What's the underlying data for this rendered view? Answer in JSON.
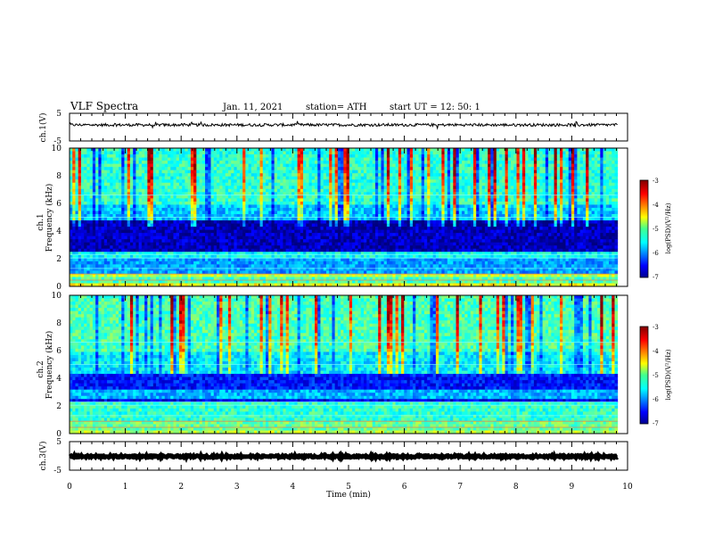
{
  "header": {
    "title": "VLF Spectra",
    "date": "Jan. 11, 2021",
    "station": "station= ATH",
    "start": "start  UT =   12: 50: 1"
  },
  "chart_data": [
    {
      "type": "line",
      "name": "panel-ch1-waveform",
      "ylabel": "ch.1(V)",
      "ylim": [
        -5,
        5
      ],
      "yticks": [
        "5",
        "-5"
      ],
      "xlim": [
        0,
        10
      ],
      "mean_level": 0.8,
      "amplitude": 0.5
    },
    {
      "type": "heatmap",
      "name": "panel-ch1-spectrogram",
      "ylabel": "ch.1\nFrequency  (kHz)",
      "ylabel_lines": [
        "ch.1",
        "Frequency  (kHz)"
      ],
      "ylim": [
        0,
        10
      ],
      "yticks": [
        "0",
        "2",
        "4",
        "6",
        "8",
        "10"
      ],
      "xlim": [
        0,
        10
      ],
      "data_end_min": 9.82,
      "colorbar": {
        "label": "log(PSD)(V²/Hz)",
        "range": [
          -7,
          -3
        ],
        "ticks": [
          "-3",
          "-4",
          "-5",
          "-6",
          "-7"
        ]
      },
      "bands": [
        {
          "from": 0.0,
          "to": 0.3,
          "level": 0.62
        },
        {
          "from": 0.3,
          "to": 0.7,
          "level": 0.45
        },
        {
          "from": 0.7,
          "to": 1.0,
          "level": 0.55
        },
        {
          "from": 1.0,
          "to": 2.2,
          "level": 0.28
        },
        {
          "from": 2.2,
          "to": 2.6,
          "level": 0.38
        },
        {
          "from": 2.6,
          "to": 4.8,
          "level": 0.06
        },
        {
          "from": 4.8,
          "to": 6.0,
          "level": 0.32
        },
        {
          "from": 6.0,
          "to": 10.0,
          "level": 0.42
        }
      ]
    },
    {
      "type": "heatmap",
      "name": "panel-ch2-spectrogram",
      "ylabel": "ch.2\nFrequency  (kHz)",
      "ylabel_lines": [
        "ch.2",
        "Frequency  (kHz)"
      ],
      "ylim": [
        0,
        10
      ],
      "yticks": [
        "0",
        "2",
        "4",
        "6",
        "8",
        "10"
      ],
      "xlim": [
        0,
        10
      ],
      "data_end_min": 9.82,
      "colorbar": {
        "label": "log(PSD)(V²/Hz)",
        "range": [
          -7,
          -3
        ],
        "ticks": [
          "-3",
          "-4",
          "-5",
          "-6",
          "-7"
        ]
      },
      "bands": [
        {
          "from": 0.0,
          "to": 0.4,
          "level": 0.55
        },
        {
          "from": 0.4,
          "to": 1.0,
          "level": 0.48
        },
        {
          "from": 1.0,
          "to": 2.4,
          "level": 0.42
        },
        {
          "from": 2.4,
          "to": 2.7,
          "level": 0.1
        },
        {
          "from": 2.7,
          "to": 3.3,
          "level": 0.3
        },
        {
          "from": 3.3,
          "to": 4.5,
          "level": 0.14
        },
        {
          "from": 4.5,
          "to": 6.0,
          "level": 0.36
        },
        {
          "from": 6.0,
          "to": 10.0,
          "level": 0.45
        }
      ]
    },
    {
      "type": "line",
      "name": "panel-ch3-waveform",
      "ylabel": "ch.3(V)",
      "ylim": [
        -5,
        5
      ],
      "yticks": [
        "5",
        "-5"
      ],
      "xlim": [
        0,
        10
      ],
      "xlabel": "Time  (min)",
      "xticks": [
        "0",
        "1",
        "2",
        "3",
        "4",
        "5",
        "6",
        "7",
        "8",
        "9",
        "10"
      ],
      "mean_level": -0.2,
      "amplitude": 0.35
    }
  ]
}
